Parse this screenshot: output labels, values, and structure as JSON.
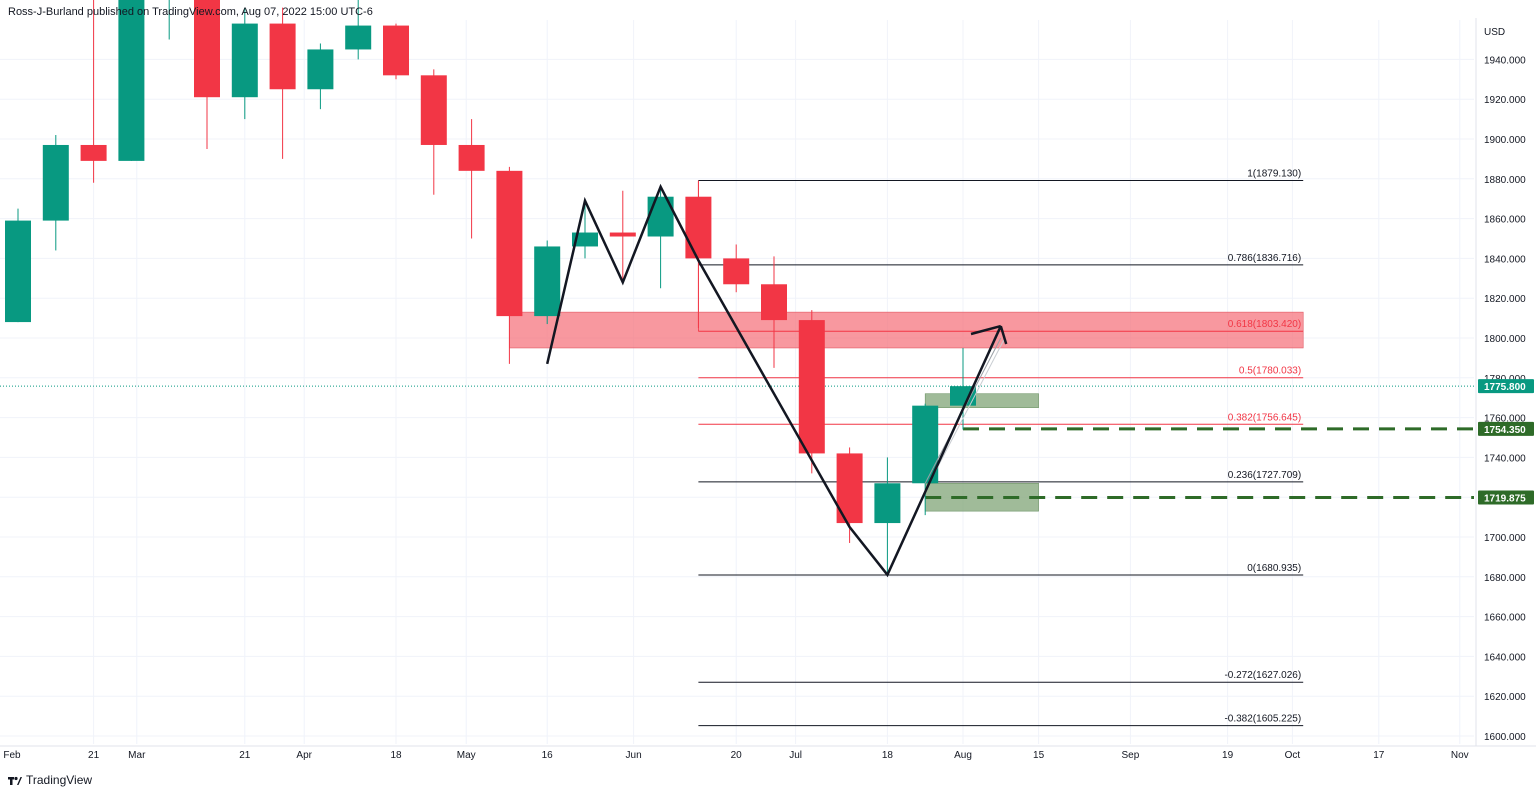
{
  "header": {
    "publisher": "Ross-J-Burland published on TradingView.com, Aug 07, 2022 15:00 UTC-6"
  },
  "footer": {
    "brand": "TradingView",
    "logo_icon": "tradingview-logo-icon"
  },
  "colors": {
    "up": "#089981",
    "down": "#f23645",
    "grid": "#f0f3fa",
    "zone_resistance": "#f5757f",
    "zone_support": "#88aa80",
    "support_dash": "#2e6b28"
  },
  "chart_data": {
    "type": "candlestick",
    "symbol_currency": "USD",
    "timeframe": "weekly",
    "ylim": [
      1592,
      1960
    ],
    "y_ticks": [
      1600,
      1620,
      1640,
      1660,
      1680,
      1700,
      1720,
      1740,
      1760,
      1780,
      1800,
      1820,
      1840,
      1860,
      1880,
      1900,
      1920,
      1940
    ],
    "x_tick_labels": [
      "Feb",
      "21",
      "Mar",
      "21",
      "Apr",
      "18",
      "May",
      "16",
      "Jun",
      "20",
      "Jul",
      "18",
      "Aug",
      "15",
      "Sep",
      "19",
      "Oct",
      "17",
      "Nov"
    ],
    "candles": [
      {
        "week": "2022-02-07",
        "open": 1808,
        "high": 1865,
        "low": 1808,
        "close": 1859
      },
      {
        "week": "2022-02-14",
        "open": 1859,
        "high": 1902,
        "low": 1844,
        "close": 1897
      },
      {
        "week": "2022-02-21",
        "open": 1897,
        "high": 1974,
        "low": 1878,
        "close": 1889
      },
      {
        "week": "2022-02-28",
        "open": 1889,
        "high": 1970,
        "low": 1889,
        "close": 1970
      },
      {
        "week": "2022-03-07",
        "open": 1970,
        "high": 1998,
        "low": 1950,
        "close": 1975
      },
      {
        "week": "2022-03-14",
        "open": 1975,
        "high": 1975,
        "low": 1895,
        "close": 1921
      },
      {
        "week": "2022-03-21",
        "open": 1921,
        "high": 1966,
        "low": 1910,
        "close": 1958
      },
      {
        "week": "2022-03-28",
        "open": 1958,
        "high": 1966,
        "low": 1890,
        "close": 1925
      },
      {
        "week": "2022-04-04",
        "open": 1925,
        "high": 1948,
        "low": 1915,
        "close": 1945
      },
      {
        "week": "2022-04-11",
        "open": 1945,
        "high": 1978,
        "low": 1940,
        "close": 1957
      },
      {
        "week": "2022-04-18",
        "open": 1957,
        "high": 1958,
        "low": 1930,
        "close": 1932
      },
      {
        "week": "2022-04-25",
        "open": 1932,
        "high": 1935,
        "low": 1872,
        "close": 1897
      },
      {
        "week": "2022-05-02",
        "open": 1897,
        "high": 1910,
        "low": 1850,
        "close": 1884
      },
      {
        "week": "2022-05-09",
        "open": 1884,
        "high": 1886,
        "low": 1787,
        "close": 1811
      },
      {
        "week": "2022-05-16",
        "open": 1811,
        "high": 1849,
        "low": 1807,
        "close": 1846
      },
      {
        "week": "2022-05-23",
        "open": 1846,
        "high": 1870,
        "low": 1840,
        "close": 1853
      },
      {
        "week": "2022-05-30",
        "open": 1853,
        "high": 1874,
        "low": 1828,
        "close": 1851
      },
      {
        "week": "2022-06-06",
        "open": 1851,
        "high": 1876,
        "low": 1825,
        "close": 1871
      },
      {
        "week": "2022-06-13",
        "open": 1871,
        "high": 1879,
        "low": 1805,
        "close": 1840
      },
      {
        "week": "2022-06-20",
        "open": 1840,
        "high": 1847,
        "low": 1823,
        "close": 1827
      },
      {
        "week": "2022-06-27",
        "open": 1827,
        "high": 1841,
        "low": 1785,
        "close": 1809
      },
      {
        "week": "2022-07-04",
        "open": 1809,
        "high": 1814,
        "low": 1732,
        "close": 1742
      },
      {
        "week": "2022-07-11",
        "open": 1742,
        "high": 1745,
        "low": 1697,
        "close": 1707
      },
      {
        "week": "2022-07-18",
        "open": 1707,
        "high": 1740,
        "low": 1681,
        "close": 1727
      },
      {
        "week": "2022-07-25",
        "open": 1727,
        "high": 1767,
        "low": 1711,
        "close": 1766
      },
      {
        "week": "2022-08-01",
        "open": 1766,
        "high": 1795,
        "low": 1754,
        "close": 1775.8
      }
    ],
    "last_price": 1775.8,
    "price_labels": [
      {
        "label": "1775.800",
        "value": 1775.8
      },
      {
        "label": "1754.350",
        "value": 1754.35
      },
      {
        "label": "1719.875",
        "value": 1719.875
      }
    ],
    "fibonacci": {
      "start_week": "2022-06-13",
      "end_week": "2022-10-03",
      "levels": [
        {
          "label": "1(1879.130)",
          "value": 1879.13,
          "color": "#131722"
        },
        {
          "label": "0.786(1836.716)",
          "value": 1836.716,
          "color": "#131722"
        },
        {
          "label": "0.618(1803.420)",
          "value": 1803.42,
          "color": "#f23645"
        },
        {
          "label": "0.5(1780.033)",
          "value": 1780.033,
          "color": "#f23645"
        },
        {
          "label": "0.382(1756.645)",
          "value": 1756.645,
          "color": "#f23645"
        },
        {
          "label": "0.236(1727.709)",
          "value": 1727.709,
          "color": "#131722"
        },
        {
          "label": "0(1680.935)",
          "value": 1680.935,
          "color": "#131722"
        },
        {
          "label": "-0.272(1627.026)",
          "value": 1627.026,
          "color": "#131722"
        },
        {
          "label": "-0.382(1605.225)",
          "value": 1605.225,
          "color": "#131722"
        }
      ]
    },
    "zones": [
      {
        "type": "resistance",
        "start_week": "2022-05-09",
        "end_week": "2022-10-03",
        "top": 1813,
        "bottom": 1795
      },
      {
        "type": "support",
        "start_week": "2022-07-25",
        "end_week": "2022-08-15",
        "top": 1772,
        "bottom": 1765
      },
      {
        "type": "support",
        "start_week": "2022-07-25",
        "end_week": "2022-08-15",
        "top": 1727,
        "bottom": 1713
      }
    ],
    "support_dashes": [
      {
        "value": 1754.35,
        "start_week": "2022-08-01"
      },
      {
        "value": 1719.875,
        "start_week": "2022-07-25"
      }
    ],
    "drawn_path": {
      "points": [
        {
          "week": "2022-05-16",
          "value": 1787
        },
        {
          "week": "2022-05-23",
          "value": 1869
        },
        {
          "week": "2022-05-30",
          "value": 1828
        },
        {
          "week": "2022-06-06",
          "value": 1876
        },
        {
          "week": "2022-06-13",
          "value": 1839
        },
        {
          "week": "2022-07-11",
          "value": 1705
        },
        {
          "week": "2022-07-18",
          "value": 1681
        },
        {
          "week": "2022-08-08",
          "value": 1806
        }
      ],
      "arrowhead": [
        {
          "week": "2022-08-08",
          "value": 1806
        },
        {
          "week": "2022-08-01",
          "value": 1802
        }
      ],
      "arrowhead_tail": [
        {
          "week": "2022-08-08",
          "value": 1806
        },
        {
          "week": "2022-08-09",
          "value": 1797
        }
      ]
    },
    "trendline": {
      "from": {
        "week": "2022-07-25",
        "value": 1727
      },
      "to": {
        "week": "2022-08-08",
        "value": 1800
      }
    },
    "grid": true,
    "legend": "none"
  }
}
